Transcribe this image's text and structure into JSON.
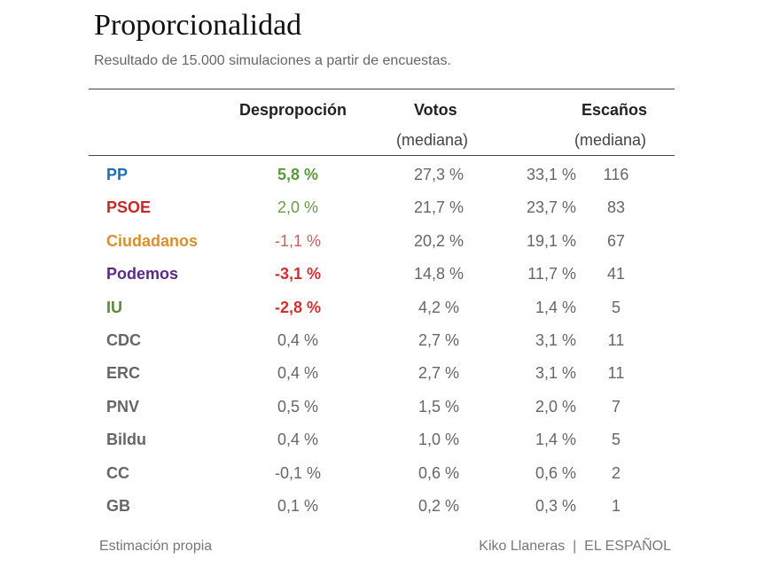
{
  "title": "Proporcionalidad",
  "subtitle": "Resultado de 15.000 simulaciones a partir de encuestas.",
  "headers": {
    "desproporcion": "Despropoción",
    "votos": "Votos",
    "votos_sub": "(mediana)",
    "escanos": "Escaños",
    "escanos_sub": "(mediana)"
  },
  "rows": [
    {
      "party": "PP",
      "color": "#1f6fb8",
      "disp": "5,8 %",
      "disp_color": "#5a9a3a",
      "disp_bold": true,
      "votos": "27,3 %",
      "esc_pct": "33,1 %",
      "esc_n": "116"
    },
    {
      "party": "PSOE",
      "color": "#c62828",
      "disp": "2,0 %",
      "disp_color": "#6a9a4a",
      "disp_bold": false,
      "votos": "21,7 %",
      "esc_pct": "23,7 %",
      "esc_n": "83"
    },
    {
      "party": "Ciudadanos",
      "color": "#d8902a",
      "disp": "-1,1 %",
      "disp_color": "#c46060",
      "disp_bold": false,
      "votos": "20,2 %",
      "esc_pct": "19,1 %",
      "esc_n": "67"
    },
    {
      "party": "Podemos",
      "color": "#5b2a86",
      "disp": "-3,1 %",
      "disp_color": "#d32f2f",
      "disp_bold": true,
      "votos": "14,8 %",
      "esc_pct": "11,7 %",
      "esc_n": "41"
    },
    {
      "party": "IU",
      "color": "#5a8a3a",
      "disp": "-2,8 %",
      "disp_color": "#d32f2f",
      "disp_bold": true,
      "votos": "4,2 %",
      "esc_pct": "1,4 %",
      "esc_n": "5"
    },
    {
      "party": "CDC",
      "color": "#666666",
      "disp": "0,4 %",
      "disp_color": "#666666",
      "disp_bold": false,
      "votos": "2,7 %",
      "esc_pct": "3,1 %",
      "esc_n": "11"
    },
    {
      "party": "ERC",
      "color": "#666666",
      "disp": "0,4 %",
      "disp_color": "#666666",
      "disp_bold": false,
      "votos": "2,7 %",
      "esc_pct": "3,1 %",
      "esc_n": "11"
    },
    {
      "party": "PNV",
      "color": "#666666",
      "disp": "0,5 %",
      "disp_color": "#666666",
      "disp_bold": false,
      "votos": "1,5 %",
      "esc_pct": "2,0 %",
      "esc_n": "7"
    },
    {
      "party": "Bildu",
      "color": "#666666",
      "disp": "0,4 %",
      "disp_color": "#666666",
      "disp_bold": false,
      "votos": "1,0 %",
      "esc_pct": "1,4 %",
      "esc_n": "5"
    },
    {
      "party": "CC",
      "color": "#666666",
      "disp": "-0,1 %",
      "disp_color": "#666666",
      "disp_bold": false,
      "votos": "0,6 %",
      "esc_pct": "0,6 %",
      "esc_n": "2"
    },
    {
      "party": "GB",
      "color": "#666666",
      "disp": "0,1 %",
      "disp_color": "#666666",
      "disp_bold": false,
      "votos": "0,2 %",
      "esc_pct": "0,3 %",
      "esc_n": "1"
    }
  ],
  "footer": {
    "left": "Estimación propia",
    "right": "Kiko Llaneras  |  EL ESPAÑOL"
  }
}
